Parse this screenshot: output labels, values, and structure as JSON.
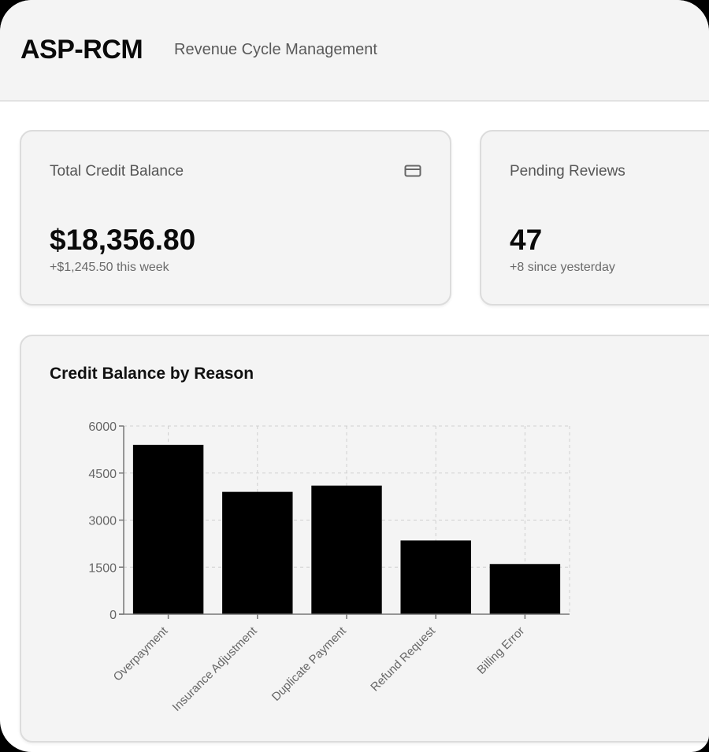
{
  "header": {
    "brand": "ASP-RCM",
    "subtitle": "Revenue Cycle Management"
  },
  "cards": [
    {
      "label": "Total Credit Balance",
      "value": "$18,356.80",
      "sub": "+$1,245.50 this week",
      "icon": "credit-card-icon"
    },
    {
      "label": "Pending Reviews",
      "value": "47",
      "sub": "+8 since yesterday"
    }
  ],
  "chart_panel": {
    "title": "Credit Balance by Reason"
  },
  "chart_data": {
    "type": "bar",
    "title": "Credit Balance by Reason",
    "categories": [
      "Overpayment",
      "Insurance Adjustment",
      "Duplicate Payment",
      "Refund Request",
      "Billing Error"
    ],
    "values": [
      5400,
      3900,
      4100,
      2350,
      1600
    ],
    "xlabel": "",
    "ylabel": "",
    "ylim": [
      0,
      6000
    ],
    "yticks": [
      0,
      1500,
      3000,
      4500,
      6000
    ],
    "grid": true,
    "grid_style": "dashed",
    "bar_color": "#000000",
    "legend": null
  }
}
